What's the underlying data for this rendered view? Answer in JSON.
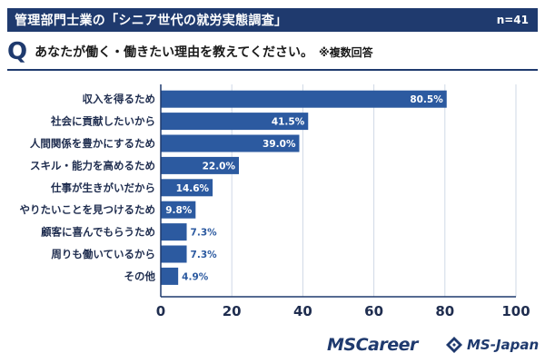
{
  "header": {
    "title": "管理部門士業の「シニア世代の就労実態調査」",
    "sample_size": "n=41"
  },
  "question": {
    "mark": "Q",
    "text": "あなたが働く・働きたい理由を教えてください。",
    "note": "※複数回答"
  },
  "colors": {
    "bar": "#2c5aa0",
    "header": "#1f3a6e",
    "axis": "#1f3a6e",
    "grid": "#cfd8e6"
  },
  "chart_data": {
    "type": "bar",
    "orientation": "horizontal",
    "categories": [
      "収入を得るため",
      "社会に貢献したいから",
      "人間関係を豊かにするため",
      "スキル・能力を高めるため",
      "仕事が生きがいだから",
      "やりたいことを見つけるため",
      "顧客に喜んでもらうため",
      "周りも働いているから",
      "その他"
    ],
    "values": [
      80.5,
      41.5,
      39.0,
      22.0,
      14.6,
      9.8,
      7.3,
      7.3,
      4.9
    ],
    "data_labels": [
      "80.5%",
      "41.5%",
      "39.0%",
      "22.0%",
      "14.6%",
      "9.8%",
      "7.3%",
      "7.3%",
      "4.9%"
    ],
    "xlim": [
      0,
      100
    ],
    "xticks": [
      0,
      20,
      40,
      60,
      80,
      100
    ],
    "grid": true
  },
  "footer": {
    "logo_left": "MSCareer",
    "logo_right": "MS-Japan"
  }
}
